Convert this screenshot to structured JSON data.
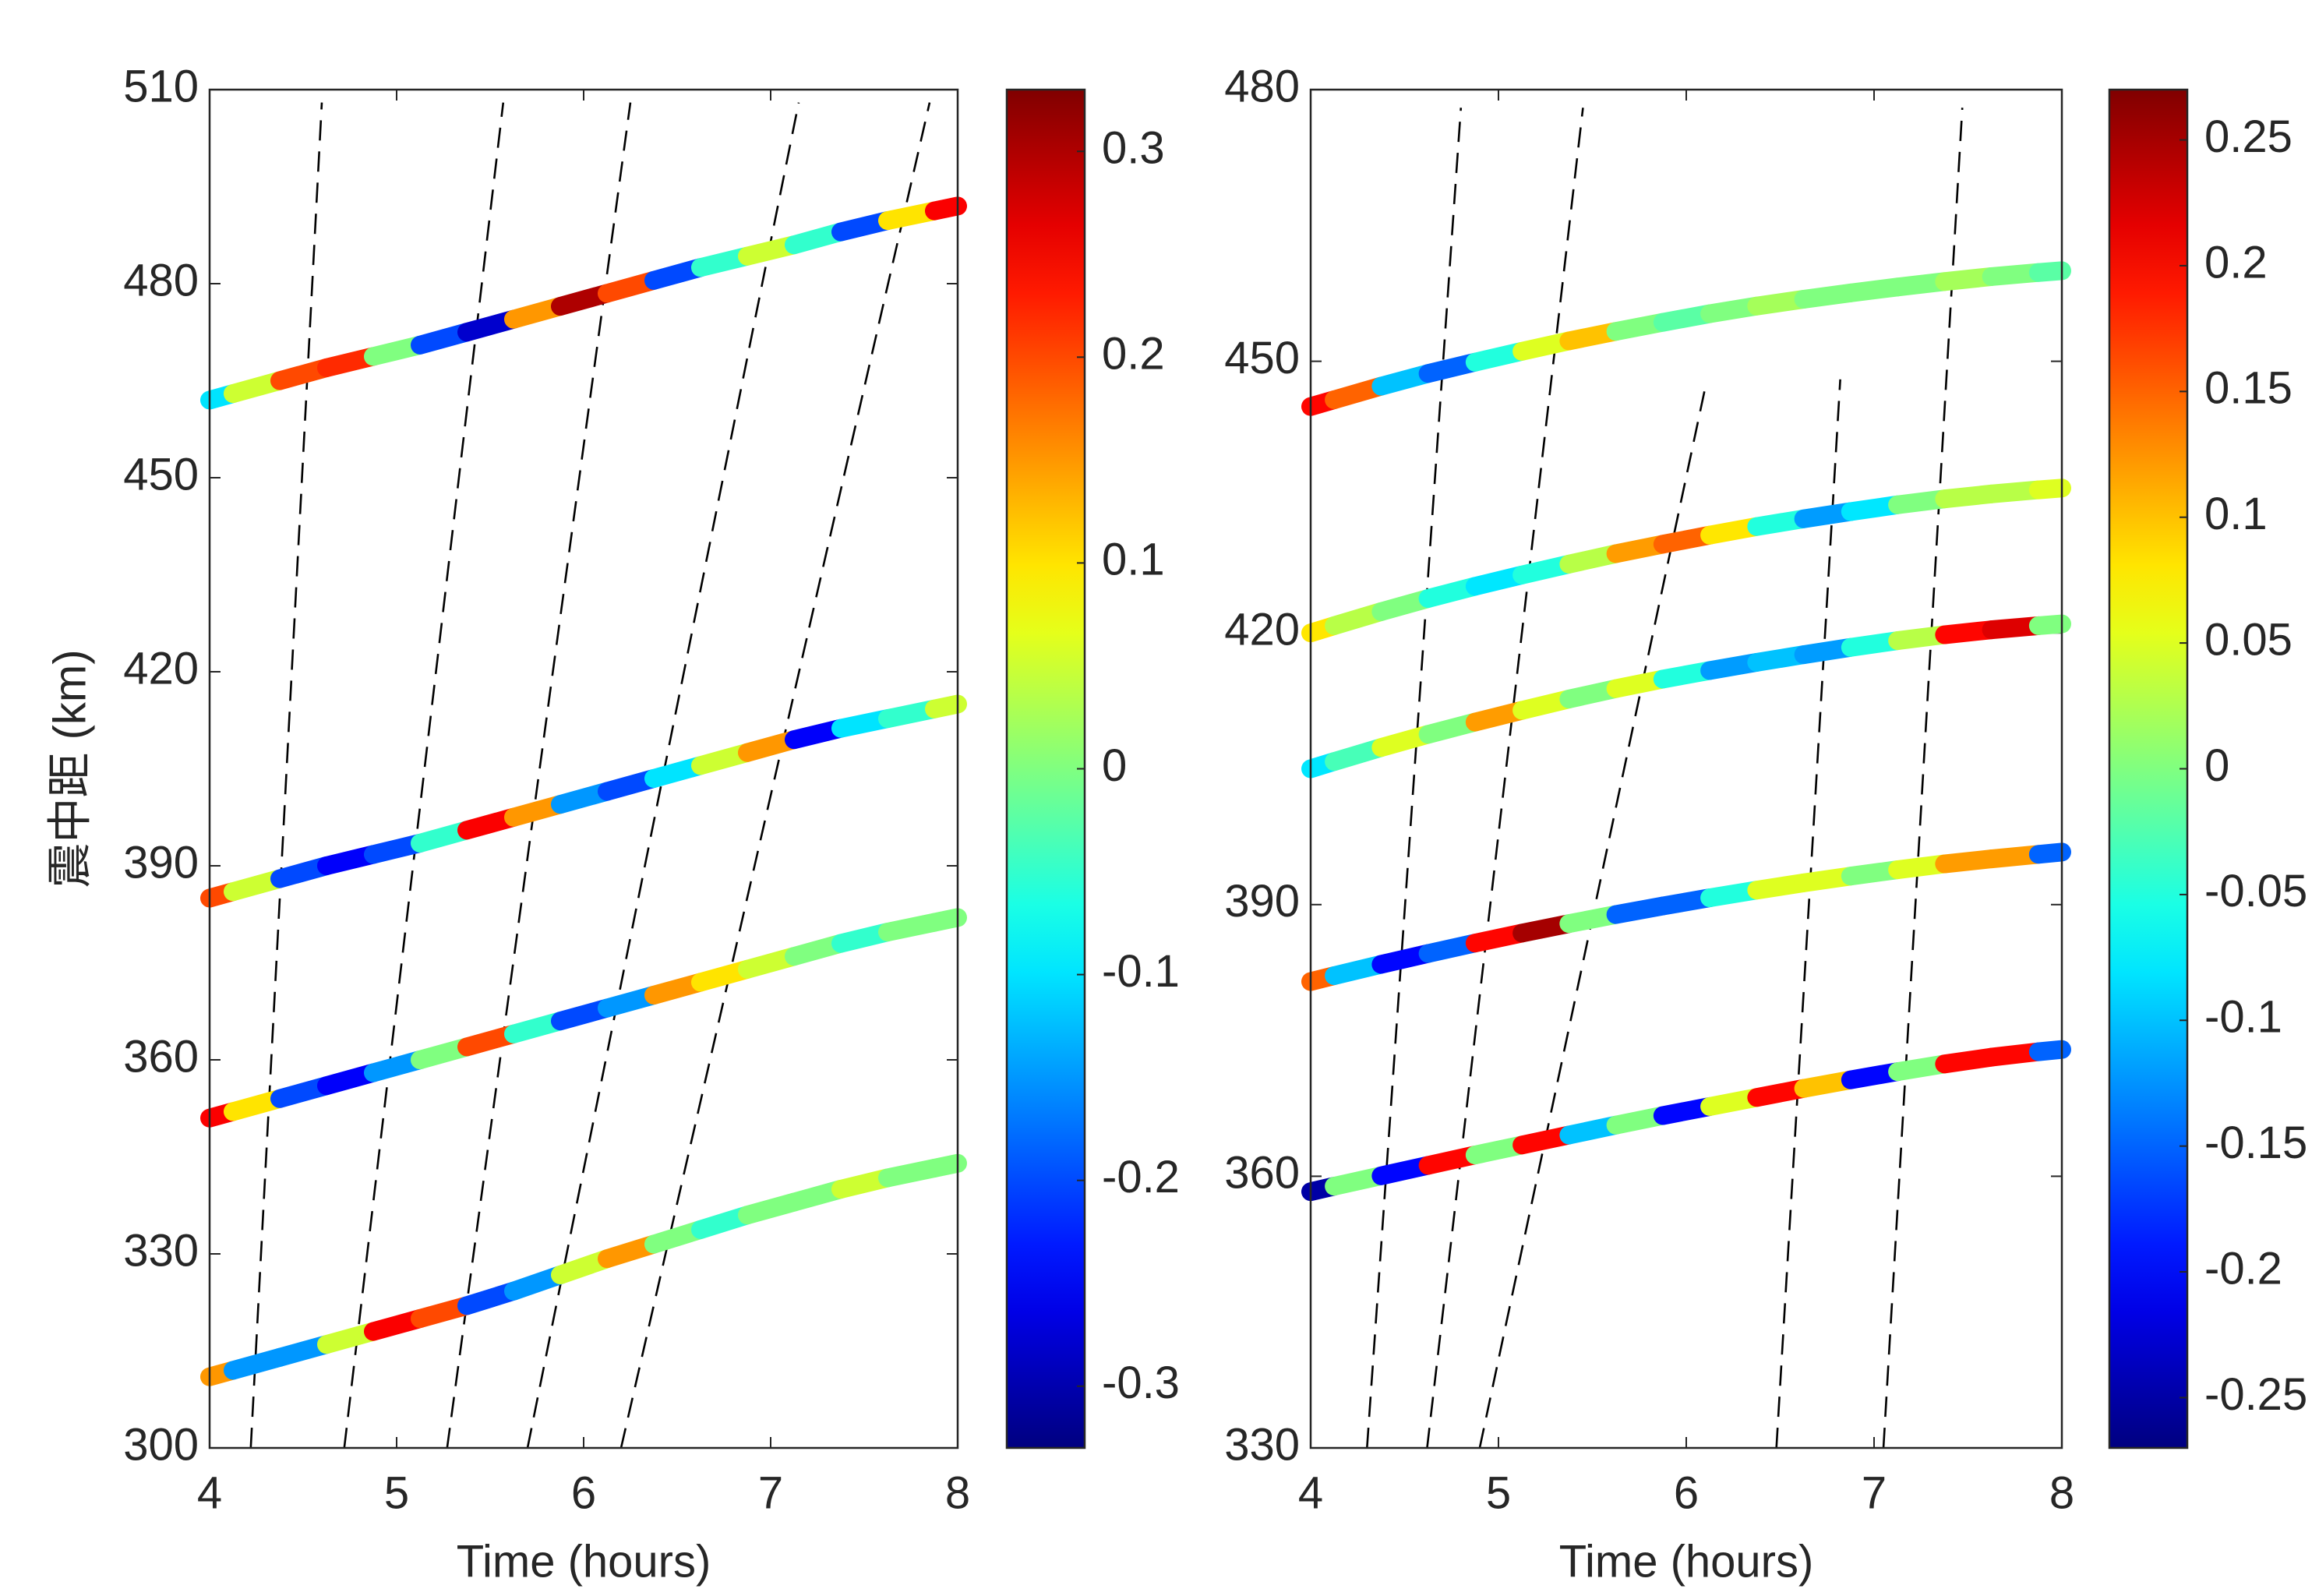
{
  "chart_data": [
    {
      "type": "line",
      "colormap": "jet",
      "xlabel": "Time (hours)",
      "ylabel": "震中距 (km)",
      "xlim": [
        4,
        8
      ],
      "xticks": [
        4,
        5,
        6,
        7,
        8
      ],
      "ylim": [
        300,
        510
      ],
      "yticks": [
        300,
        330,
        360,
        390,
        420,
        450,
        480,
        510
      ],
      "clim": [
        -0.33,
        0.33
      ],
      "cticks": [
        -0.3,
        -0.2,
        -0.1,
        0,
        0.1,
        0.2,
        0.3
      ],
      "x": [
        4,
        4.25,
        4.5,
        4.75,
        5,
        5.25,
        5.5,
        5.75,
        6,
        6.25,
        6.5,
        6.75,
        7,
        7.25,
        7.5,
        7.75,
        8
      ],
      "series": [
        {
          "values": [
            462,
            464,
            466,
            468,
            469.5,
            471.5,
            473.5,
            475.5,
            477.5,
            479.5,
            481.5,
            483.5,
            485,
            487,
            489,
            490.5,
            492
          ],
          "c": [
            -0.1,
            0.05,
            0.2,
            0.22,
            0,
            -0.2,
            -0.28,
            0.15,
            0.3,
            0.2,
            -0.2,
            -0.05,
            0.05,
            -0.05,
            -0.2,
            0.1,
            0.25
          ]
        },
        {
          "values": [
            385,
            387,
            389,
            391,
            392.5,
            394.5,
            396.5,
            398.5,
            400.5,
            402.5,
            404.5,
            406.5,
            408.5,
            410.5,
            412,
            413.5,
            415
          ],
          "c": [
            0.2,
            0.05,
            -0.2,
            -0.25,
            -0.2,
            -0.05,
            0.25,
            0.15,
            -0.15,
            -0.2,
            -0.1,
            0.05,
            0.15,
            -0.25,
            -0.1,
            -0.05,
            0.05
          ]
        },
        {
          "values": [
            351,
            353,
            355,
            357,
            359,
            361,
            363,
            365,
            367,
            369,
            371,
            373,
            375,
            377,
            379,
            380.5,
            382
          ],
          "c": [
            0.25,
            0.1,
            -0.2,
            -0.25,
            -0.15,
            0,
            0.2,
            -0.05,
            -0.2,
            -0.15,
            0.15,
            0.1,
            0.05,
            0,
            -0.05,
            0,
            0
          ]
        },
        {
          "values": [
            311,
            313,
            315,
            317,
            319,
            321,
            323,
            325.5,
            328,
            330.5,
            332.5,
            335,
            337,
            339,
            341,
            342.5,
            344
          ],
          "c": [
            0.15,
            -0.15,
            -0.15,
            0.05,
            0.25,
            0.2,
            -0.2,
            -0.15,
            0.05,
            0.15,
            0,
            -0.05,
            0,
            0,
            0.05,
            0,
            0
          ]
        }
      ],
      "lines": [
        {
          "color": "#000000",
          "dash": true,
          "x": [
            4.22,
            4.6
          ],
          "values": [
            300,
            508
          ]
        },
        {
          "color": "#000000",
          "dash": true,
          "x": [
            4.72,
            5.57
          ],
          "values": [
            300,
            508
          ]
        },
        {
          "color": "#000000",
          "dash": true,
          "x": [
            5.27,
            6.25
          ],
          "values": [
            300,
            508
          ]
        },
        {
          "color": "#000000",
          "dash": true,
          "x": [
            5.7,
            7.15
          ],
          "values": [
            300,
            508
          ]
        },
        {
          "color": "#000000",
          "dash": true,
          "x": [
            6.2,
            7.85
          ],
          "values": [
            300,
            508
          ]
        }
      ]
    },
    {
      "type": "line",
      "colormap": "jet",
      "xlabel": "Time (hours)",
      "xlim": [
        4,
        8
      ],
      "xticks": [
        4,
        5,
        6,
        7,
        8
      ],
      "ylim": [
        330,
        480
      ],
      "yticks": [
        330,
        360,
        390,
        420,
        450,
        480
      ],
      "clim": [
        -0.27,
        0.27
      ],
      "cticks": [
        -0.25,
        -0.2,
        -0.15,
        -0.1,
        -0.05,
        0,
        0.05,
        0.1,
        0.15,
        0.2,
        0.25
      ],
      "x": [
        4,
        4.25,
        4.5,
        4.75,
        5,
        5.25,
        5.5,
        5.75,
        6,
        6.25,
        6.5,
        6.75,
        7,
        7.25,
        7.5,
        7.75,
        8
      ],
      "series": [
        {
          "values": [
            445,
            446.5,
            448,
            449.3,
            450.5,
            451.7,
            452.8,
            453.8,
            454.8,
            455.7,
            456.5,
            457.2,
            457.9,
            458.5,
            459.1,
            459.6,
            460
          ],
          "c": [
            0.2,
            0.15,
            -0.1,
            -0.15,
            -0.05,
            0.05,
            0.1,
            0,
            -0.02,
            0,
            0.02,
            0,
            0,
            0,
            0.02,
            0,
            -0.02
          ]
        },
        {
          "values": [
            420,
            421.6,
            423.1,
            424.5,
            425.8,
            427,
            428.2,
            429.3,
            430.3,
            431.3,
            432.2,
            433,
            433.8,
            434.5,
            435.1,
            435.6,
            436
          ],
          "c": [
            0.08,
            0.03,
            0,
            -0.05,
            -0.08,
            -0.05,
            0.03,
            0.12,
            0.15,
            0.08,
            -0.05,
            -0.12,
            -0.08,
            0,
            0.03,
            0.03,
            0.05
          ]
        },
        {
          "values": [
            405,
            406.6,
            408.1,
            409.5,
            410.8,
            412.1,
            413.3,
            414.4,
            415.4,
            416.3,
            417.2,
            418,
            418.8,
            419.5,
            420.1,
            420.6,
            421
          ],
          "c": [
            -0.08,
            -0.03,
            0.05,
            0,
            0.12,
            0.05,
            0,
            0.05,
            -0.05,
            -0.12,
            -0.1,
            -0.12,
            -0.05,
            0.03,
            0.2,
            0.22,
            0
          ]
        },
        {
          "values": [
            381.5,
            382.8,
            384,
            385.2,
            386.3,
            387.4,
            388.4,
            389.4,
            390.3,
            391.2,
            392,
            392.8,
            393.5,
            394.2,
            394.8,
            395.3,
            395.8
          ],
          "c": [
            0.15,
            -0.1,
            -0.2,
            -0.15,
            0.2,
            0.25,
            0,
            -0.15,
            -0.15,
            -0.05,
            0.05,
            0.05,
            0,
            0.05,
            0.12,
            0.12,
            -0.15
          ]
        },
        {
          "values": [
            358.3,
            359.5,
            360.6,
            361.8,
            362.9,
            364,
            365.1,
            366.2,
            367.2,
            368.2,
            369.2,
            370.2,
            371.1,
            372,
            372.8,
            373.5,
            374
          ],
          "c": [
            -0.25,
            0,
            -0.2,
            0.2,
            0,
            0.2,
            -0.1,
            0,
            -0.2,
            0.05,
            0.2,
            0.1,
            -0.2,
            0,
            0.2,
            0.2,
            -0.15
          ]
        }
      ],
      "lines": [
        {
          "color": "#000000",
          "dash": true,
          "x": [
            4.3,
            4.8
          ],
          "values": [
            330,
            478
          ]
        },
        {
          "color": "#000000",
          "dash": true,
          "x": [
            4.62,
            5.45
          ],
          "values": [
            330,
            478
          ]
        },
        {
          "color": "#000000",
          "dash": true,
          "x": [
            4.9,
            6.1
          ],
          "values": [
            330,
            447
          ]
        },
        {
          "color": "#000000",
          "dash": true,
          "x": [
            6.48,
            6.82
          ],
          "values": [
            330,
            448
          ]
        },
        {
          "color": "#000000",
          "dash": true,
          "x": [
            7.05,
            7.47
          ],
          "values": [
            330,
            478
          ]
        }
      ]
    }
  ]
}
